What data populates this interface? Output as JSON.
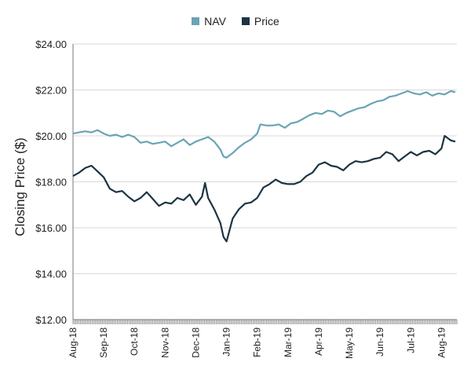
{
  "colors": {
    "nav": "#6aa3b5",
    "price": "#1c3442",
    "axis": "#777777",
    "grid": "#d9d9d9"
  },
  "chart_data": {
    "type": "line",
    "title": "",
    "xlabel": "",
    "ylabel": "Closing Price ($)",
    "ylim": [
      12,
      24
    ],
    "yticks": [
      12,
      14,
      16,
      18,
      20,
      22,
      24
    ],
    "ytick_labels": [
      "$12.00",
      "$14.00",
      "$16.00",
      "$18.00",
      "$20.00",
      "$22.00",
      "$24.00"
    ],
    "xtick_labels": [
      "Aug-18",
      "Sep-18",
      "Oct-18",
      "Nov-18",
      "Dec-18",
      "Jan-19",
      "Feb-19",
      "Mar-19",
      "Apr-19",
      "May-19",
      "Jun-19",
      "Jul-19",
      "Aug-19"
    ],
    "legend": {
      "position": "top-center",
      "entries": [
        "NAV",
        "Price"
      ]
    },
    "grid": "horizontal",
    "x": [
      "Aug-18",
      "Sep-18",
      "Oct-18",
      "Nov-18",
      "Dec-18",
      "Jan-19",
      "Feb-19",
      "Mar-19",
      "Apr-19",
      "May-19",
      "Jun-19",
      "Jul-19",
      "Aug-19"
    ],
    "series": [
      {
        "name": "NAV",
        "values": [
          [
            0,
            20.1
          ],
          [
            0.2,
            20.15
          ],
          [
            0.4,
            20.2
          ],
          [
            0.6,
            20.15
          ],
          [
            0.8,
            20.25
          ],
          [
            1.0,
            20.1
          ],
          [
            1.2,
            20.0
          ],
          [
            1.4,
            20.05
          ],
          [
            1.6,
            19.95
          ],
          [
            1.8,
            20.05
          ],
          [
            2.0,
            19.95
          ],
          [
            2.2,
            19.7
          ],
          [
            2.4,
            19.75
          ],
          [
            2.6,
            19.65
          ],
          [
            2.8,
            19.7
          ],
          [
            3.0,
            19.75
          ],
          [
            3.2,
            19.55
          ],
          [
            3.4,
            19.7
          ],
          [
            3.6,
            19.85
          ],
          [
            3.8,
            19.6
          ],
          [
            4.0,
            19.75
          ],
          [
            4.2,
            19.85
          ],
          [
            4.4,
            19.95
          ],
          [
            4.6,
            19.75
          ],
          [
            4.8,
            19.4
          ],
          [
            4.9,
            19.1
          ],
          [
            5.0,
            19.05
          ],
          [
            5.2,
            19.25
          ],
          [
            5.4,
            19.5
          ],
          [
            5.6,
            19.7
          ],
          [
            5.8,
            19.85
          ],
          [
            6.0,
            20.1
          ],
          [
            6.1,
            20.5
          ],
          [
            6.3,
            20.45
          ],
          [
            6.5,
            20.45
          ],
          [
            6.7,
            20.5
          ],
          [
            6.9,
            20.35
          ],
          [
            7.1,
            20.55
          ],
          [
            7.3,
            20.6
          ],
          [
            7.5,
            20.75
          ],
          [
            7.7,
            20.9
          ],
          [
            7.9,
            21.0
          ],
          [
            8.1,
            20.95
          ],
          [
            8.3,
            21.1
          ],
          [
            8.5,
            21.05
          ],
          [
            8.7,
            20.85
          ],
          [
            8.9,
            21.0
          ],
          [
            9.1,
            21.1
          ],
          [
            9.3,
            21.2
          ],
          [
            9.5,
            21.25
          ],
          [
            9.7,
            21.4
          ],
          [
            9.9,
            21.5
          ],
          [
            10.1,
            21.55
          ],
          [
            10.3,
            21.7
          ],
          [
            10.5,
            21.75
          ],
          [
            10.7,
            21.85
          ],
          [
            10.9,
            21.95
          ],
          [
            11.1,
            21.85
          ],
          [
            11.3,
            21.8
          ],
          [
            11.5,
            21.9
          ],
          [
            11.7,
            21.75
          ],
          [
            11.9,
            21.85
          ],
          [
            12.1,
            21.8
          ],
          [
            12.3,
            21.95
          ],
          [
            12.45,
            21.9
          ]
        ]
      },
      {
        "name": "Price",
        "values": [
          [
            0,
            18.25
          ],
          [
            0.2,
            18.4
          ],
          [
            0.4,
            18.6
          ],
          [
            0.6,
            18.7
          ],
          [
            0.8,
            18.45
          ],
          [
            1.0,
            18.2
          ],
          [
            1.2,
            17.7
          ],
          [
            1.4,
            17.55
          ],
          [
            1.6,
            17.6
          ],
          [
            1.8,
            17.35
          ],
          [
            2.0,
            17.15
          ],
          [
            2.2,
            17.3
          ],
          [
            2.4,
            17.55
          ],
          [
            2.6,
            17.25
          ],
          [
            2.8,
            16.95
          ],
          [
            3.0,
            17.1
          ],
          [
            3.2,
            17.05
          ],
          [
            3.4,
            17.3
          ],
          [
            3.6,
            17.2
          ],
          [
            3.8,
            17.45
          ],
          [
            4.0,
            17.0
          ],
          [
            4.2,
            17.35
          ],
          [
            4.3,
            17.95
          ],
          [
            4.4,
            17.3
          ],
          [
            4.6,
            16.8
          ],
          [
            4.8,
            16.2
          ],
          [
            4.9,
            15.6
          ],
          [
            5.0,
            15.4
          ],
          [
            5.1,
            15.9
          ],
          [
            5.2,
            16.4
          ],
          [
            5.4,
            16.8
          ],
          [
            5.6,
            17.05
          ],
          [
            5.8,
            17.1
          ],
          [
            6.0,
            17.3
          ],
          [
            6.2,
            17.75
          ],
          [
            6.4,
            17.9
          ],
          [
            6.6,
            18.1
          ],
          [
            6.8,
            17.95
          ],
          [
            7.0,
            17.9
          ],
          [
            7.2,
            17.9
          ],
          [
            7.4,
            18.0
          ],
          [
            7.6,
            18.25
          ],
          [
            7.8,
            18.4
          ],
          [
            8.0,
            18.75
          ],
          [
            8.2,
            18.85
          ],
          [
            8.4,
            18.7
          ],
          [
            8.6,
            18.65
          ],
          [
            8.8,
            18.5
          ],
          [
            9.0,
            18.75
          ],
          [
            9.2,
            18.9
          ],
          [
            9.4,
            18.85
          ],
          [
            9.6,
            18.9
          ],
          [
            9.8,
            19.0
          ],
          [
            10.0,
            19.05
          ],
          [
            10.2,
            19.3
          ],
          [
            10.4,
            19.2
          ],
          [
            10.6,
            18.9
          ],
          [
            10.8,
            19.1
          ],
          [
            11.0,
            19.3
          ],
          [
            11.2,
            19.15
          ],
          [
            11.4,
            19.3
          ],
          [
            11.6,
            19.35
          ],
          [
            11.8,
            19.2
          ],
          [
            12.0,
            19.45
          ],
          [
            12.1,
            20.0
          ],
          [
            12.2,
            19.9
          ],
          [
            12.3,
            19.8
          ],
          [
            12.45,
            19.75
          ]
        ]
      }
    ]
  }
}
